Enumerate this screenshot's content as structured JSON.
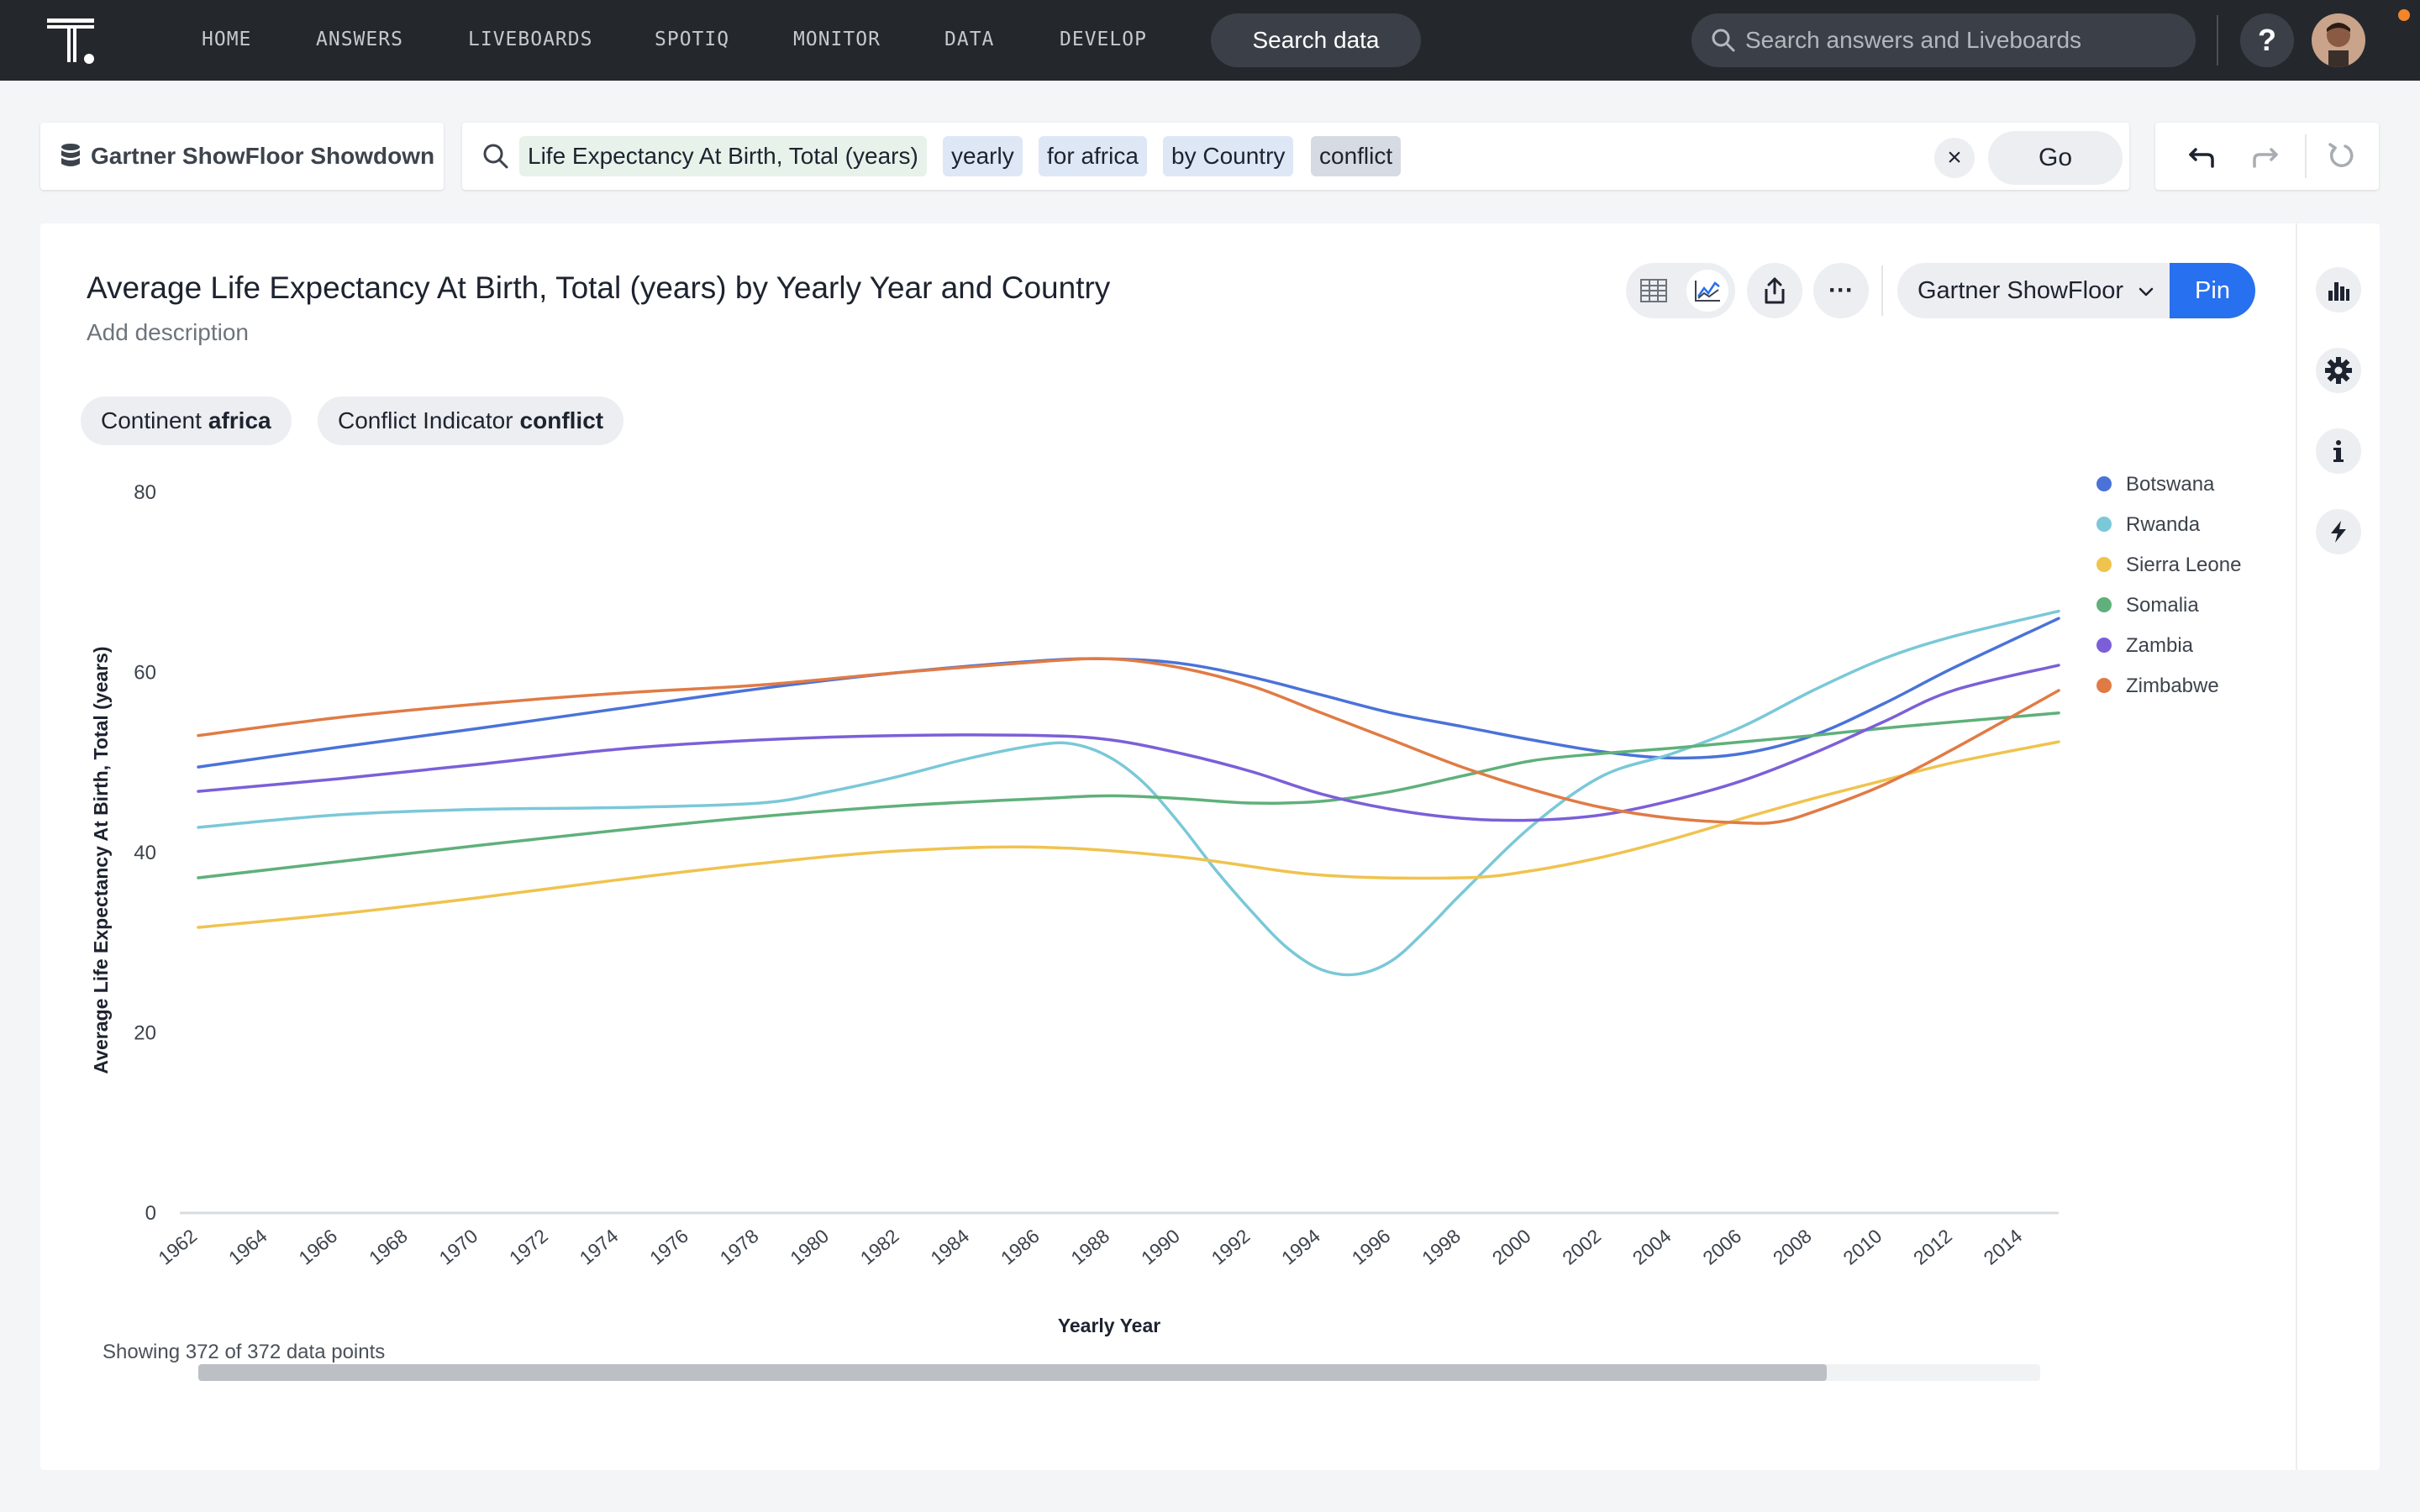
{
  "nav": {
    "items": [
      "HOME",
      "ANSWERS",
      "LIVEBOARDS",
      "SPOTIQ",
      "MONITOR",
      "DATA",
      "DEVELOP"
    ],
    "search_data_label": "Search data",
    "global_search_placeholder": "Search answers and Liveboards",
    "help_label": "?"
  },
  "search": {
    "source": "Gartner ShowFloor Showdown",
    "tokens": [
      {
        "text": "Life Expectancy At Birth, Total (years)",
        "kind": "measure"
      },
      {
        "text": "yearly",
        "kind": "keyword"
      },
      {
        "text": "for africa",
        "kind": "keyword"
      },
      {
        "text": "by Country",
        "kind": "keyword"
      },
      {
        "text": "conflict",
        "kind": "filter"
      }
    ],
    "go_label": "Go",
    "clear_label": "×"
  },
  "answer": {
    "title": "Average Life Expectancy At Birth, Total (years) by Yearly Year and Country",
    "description_placeholder": "Add description",
    "filters": [
      {
        "name": "Continent",
        "value": "africa"
      },
      {
        "name": "Conflict Indicator",
        "value": "conflict"
      }
    ],
    "liveboard_select": "Gartner ShowFloor",
    "pin_label": "Pin",
    "more_label": "···",
    "data_count": "Showing 372 of 372 data points"
  },
  "icons": {
    "source": "database-icon",
    "search": "search-icon",
    "undo": "undo-icon",
    "redo": "redo-icon",
    "reset": "reset-icon",
    "table": "table-icon",
    "chart": "line-chart-icon",
    "share": "share-icon",
    "side_panel": [
      "bar-chart-icon",
      "gear-icon",
      "info-icon",
      "lightning-icon"
    ]
  },
  "chart_data": {
    "type": "line",
    "title": "Average Life Expectancy At Birth, Total (years) by Yearly Year and Country",
    "xlabel": "Yearly Year",
    "ylabel": "Average Life Expectancy At Birth, Total (years)",
    "ylim": [
      0,
      80
    ],
    "yticks": [
      0,
      20,
      40,
      60,
      80
    ],
    "xlim": [
      1962,
      2015
    ],
    "xticks": [
      1962,
      1964,
      1966,
      1968,
      1970,
      1972,
      1974,
      1976,
      1978,
      1980,
      1982,
      1984,
      1986,
      1988,
      1990,
      1992,
      1994,
      1996,
      1998,
      2000,
      2002,
      2004,
      2006,
      2008,
      2010,
      2012,
      2014
    ],
    "legend_position": "right",
    "grid": false,
    "series": [
      {
        "name": "Botswana",
        "color": "#4a72d9",
        "x": [
          1962,
          1966,
          1970,
          1974,
          1978,
          1982,
          1986,
          1988,
          1990,
          1992,
          1994,
          1996,
          1998,
          2000,
          2002,
          2004,
          2006,
          2008,
          2010,
          2012,
          2015
        ],
        "y": [
          49.5,
          51.7,
          53.8,
          56.0,
          58.2,
          60.0,
          61.3,
          61.5,
          61.0,
          59.5,
          57.5,
          55.5,
          54.0,
          52.5,
          51.2,
          50.5,
          51.0,
          53.0,
          56.5,
          60.5,
          66.0
        ]
      },
      {
        "name": "Rwanda",
        "color": "#7ac8d8",
        "x": [
          1962,
          1966,
          1970,
          1974,
          1978,
          1980,
          1982,
          1984,
          1986,
          1987,
          1988,
          1989,
          1990,
          1991,
          1992,
          1993,
          1994,
          1995,
          1996,
          1997,
          1998,
          2000,
          2002,
          2004,
          2006,
          2008,
          2010,
          2012,
          2015
        ],
        "y": [
          42.8,
          44.2,
          44.8,
          45.0,
          45.5,
          46.8,
          48.5,
          50.5,
          52.0,
          52.0,
          50.5,
          47.5,
          43.0,
          38.0,
          33.5,
          29.5,
          27.0,
          26.5,
          28.0,
          31.5,
          35.5,
          43.0,
          48.5,
          51.0,
          54.0,
          58.0,
          61.5,
          64.0,
          66.8
        ]
      },
      {
        "name": "Sierra Leone",
        "color": "#f0c34e",
        "x": [
          1962,
          1966,
          1970,
          1974,
          1978,
          1982,
          1986,
          1990,
          1994,
          1998,
          2000,
          2002,
          2004,
          2006,
          2008,
          2010,
          2012,
          2015
        ],
        "y": [
          31.7,
          33.2,
          35.0,
          37.0,
          38.8,
          40.2,
          40.6,
          39.5,
          37.5,
          37.2,
          38.0,
          39.5,
          41.5,
          43.8,
          46.0,
          48.0,
          50.0,
          52.3
        ]
      },
      {
        "name": "Somalia",
        "color": "#5fb07a",
        "x": [
          1962,
          1966,
          1970,
          1974,
          1978,
          1982,
          1986,
          1988,
          1990,
          1992,
          1994,
          1996,
          1998,
          2000,
          2002,
          2004,
          2006,
          2008,
          2010,
          2012,
          2015
        ],
        "y": [
          37.2,
          39.0,
          40.8,
          42.5,
          44.0,
          45.2,
          46.0,
          46.3,
          46.0,
          45.5,
          45.7,
          46.8,
          48.5,
          50.2,
          51.0,
          51.6,
          52.3,
          53.0,
          53.8,
          54.5,
          55.5
        ]
      },
      {
        "name": "Zambia",
        "color": "#7c5fd8",
        "x": [
          1962,
          1966,
          1970,
          1974,
          1978,
          1982,
          1986,
          1988,
          1990,
          1992,
          1994,
          1996,
          1998,
          2000,
          2002,
          2004,
          2006,
          2008,
          2010,
          2012,
          2015
        ],
        "y": [
          46.8,
          48.2,
          49.8,
          51.5,
          52.5,
          53.0,
          53.0,
          52.5,
          51.0,
          49.0,
          46.5,
          44.8,
          43.8,
          43.6,
          44.2,
          45.8,
          48.0,
          51.0,
          54.5,
          58.0,
          60.8
        ]
      },
      {
        "name": "Zimbabwe",
        "color": "#e07b45",
        "x": [
          1962,
          1966,
          1970,
          1974,
          1978,
          1982,
          1986,
          1988,
          1990,
          1992,
          1994,
          1996,
          1998,
          2000,
          2002,
          2004,
          2006,
          2007,
          2008,
          2010,
          2012,
          2015
        ],
        "y": [
          53.0,
          55.0,
          56.5,
          57.7,
          58.6,
          60.0,
          61.2,
          61.5,
          60.5,
          58.5,
          55.5,
          52.5,
          49.5,
          47.0,
          45.0,
          43.8,
          43.3,
          43.4,
          44.5,
          47.5,
          51.5,
          58.0
        ]
      }
    ]
  }
}
